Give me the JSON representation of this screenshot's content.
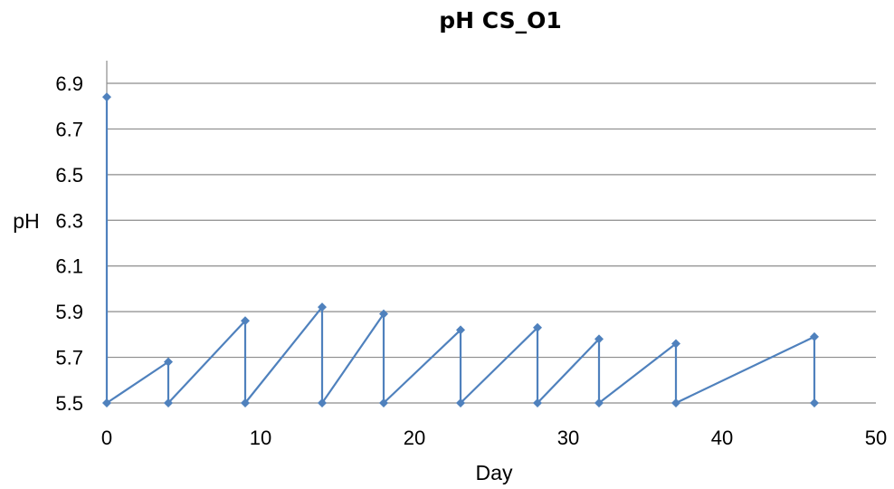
{
  "chart_data": {
    "type": "line",
    "title": "pH CS_O1",
    "xlabel": "Day",
    "ylabel": "pH",
    "xlim": [
      0,
      50
    ],
    "ylim": [
      5.5,
      6.9
    ],
    "x_ticks": [
      0,
      10,
      20,
      30,
      40,
      50
    ],
    "y_ticks": [
      5.5,
      5.7,
      5.9,
      6.1,
      6.3,
      6.5,
      6.7,
      6.9
    ],
    "y_tick_labels": [
      "5.5",
      "5.7",
      "5.9",
      "6.1",
      "6.3",
      "6.5",
      "6.7",
      "6.9"
    ],
    "grid": "horizontal",
    "legend": "none",
    "series": [
      {
        "color": "#4f81bd",
        "marker": "diamond",
        "points": [
          {
            "x": 0,
            "y": 6.84
          },
          {
            "x": 0,
            "y": 5.5
          },
          {
            "x": 4,
            "y": 5.68
          },
          {
            "x": 4,
            "y": 5.5
          },
          {
            "x": 9,
            "y": 5.86
          },
          {
            "x": 9,
            "y": 5.5
          },
          {
            "x": 14,
            "y": 5.92
          },
          {
            "x": 14,
            "y": 5.5
          },
          {
            "x": 18,
            "y": 5.89
          },
          {
            "x": 18,
            "y": 5.5
          },
          {
            "x": 23,
            "y": 5.82
          },
          {
            "x": 23,
            "y": 5.5
          },
          {
            "x": 28,
            "y": 5.83
          },
          {
            "x": 28,
            "y": 5.5
          },
          {
            "x": 32,
            "y": 5.78
          },
          {
            "x": 32,
            "y": 5.5
          },
          {
            "x": 37,
            "y": 5.76
          },
          {
            "x": 37,
            "y": 5.5
          },
          {
            "x": 46,
            "y": 5.79
          },
          {
            "x": 46,
            "y": 5.5
          }
        ]
      }
    ]
  },
  "colors": {
    "series": "#4f81bd",
    "grid": "#8c8c8c",
    "axis": "#8c8c8c"
  }
}
